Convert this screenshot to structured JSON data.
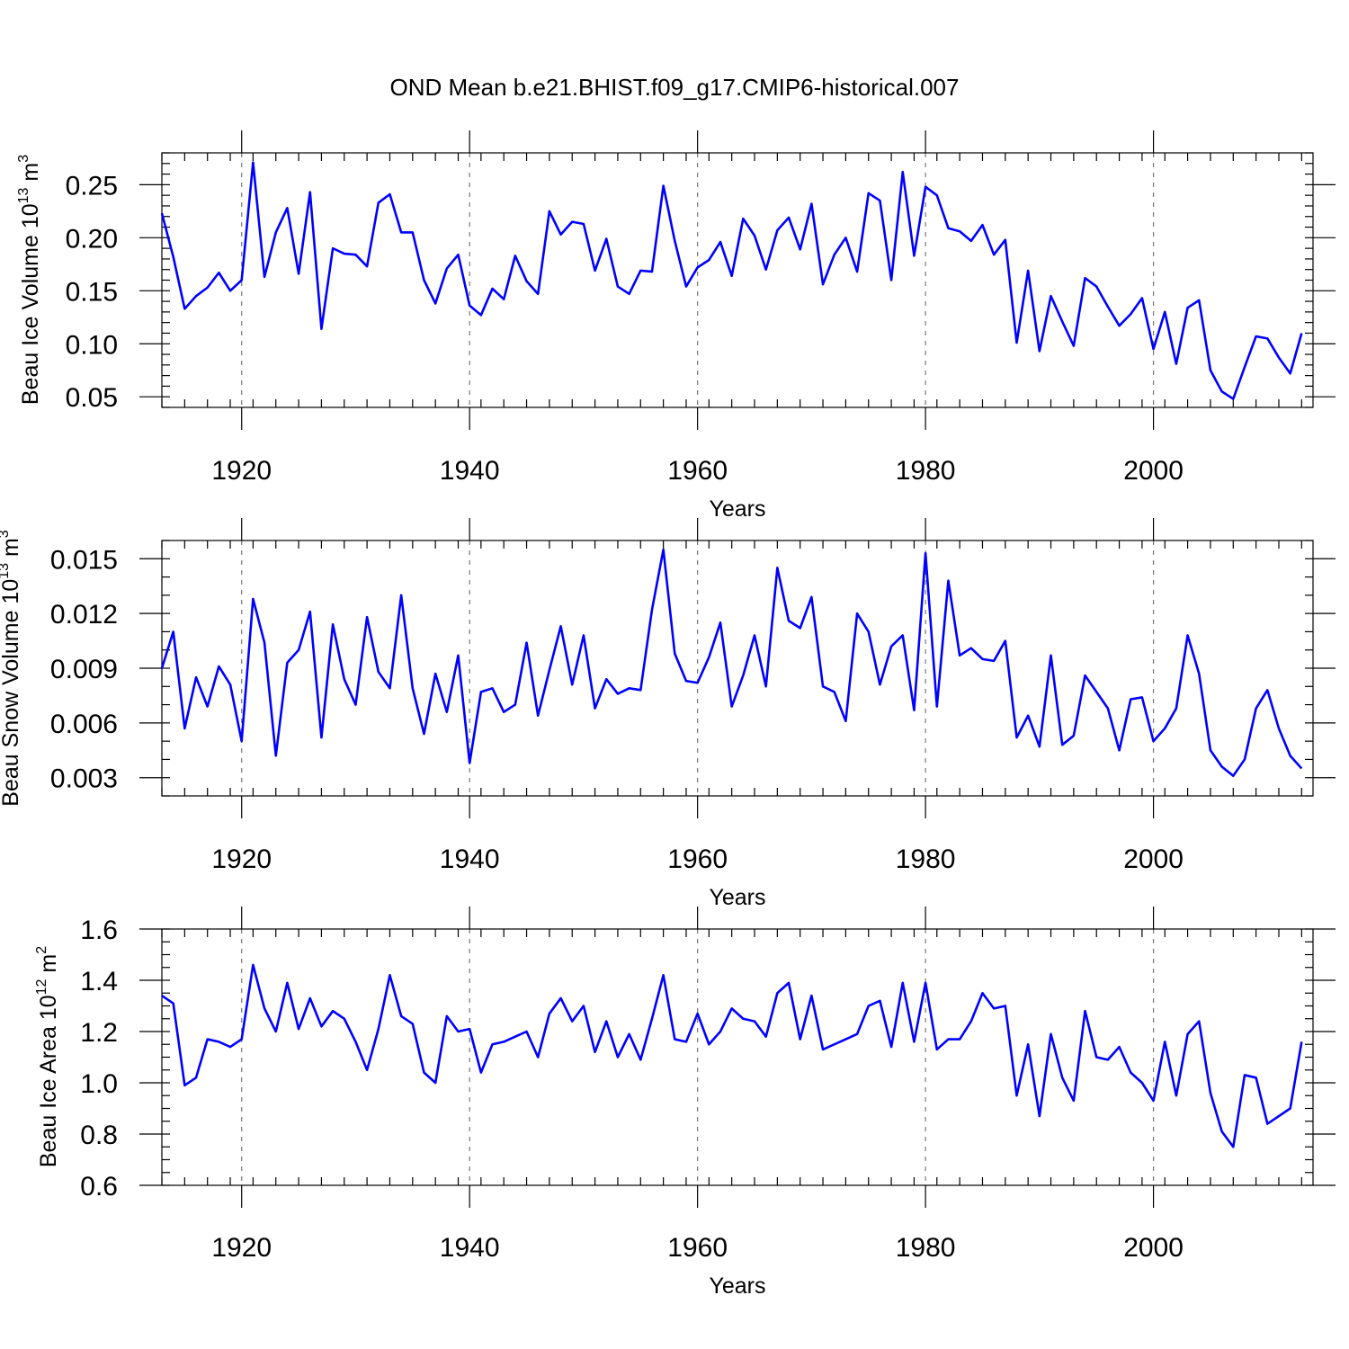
{
  "figure_title": "OND Mean b.e21.BHIST.f09_g17.CMIP6-historical.007",
  "series_color": "#0000ff",
  "chart_data": [
    {
      "type": "line",
      "title": "OND Mean b.e21.BHIST.f09_g17.CMIP6-historical.007",
      "ylabel_main": "Beau Ice Volume 10",
      "ylabel_exp": "13",
      "ylabel_unit": " m",
      "ylabel_unit_exp": "3",
      "xlabel": "Years",
      "xlim": [
        1913,
        2014
      ],
      "ylim": [
        0.04,
        0.28
      ],
      "major_yticks": [
        0.05,
        0.1,
        0.15,
        0.2,
        0.25
      ],
      "ytick_labels": [
        "0.05",
        "0.10",
        "0.15",
        "0.20",
        "0.25"
      ],
      "minor_ytick_step": 0.01,
      "xticks": [
        1920,
        1940,
        1960,
        1980,
        2000
      ],
      "xtick_labels": [
        "1920",
        "1940",
        "1960",
        "1980",
        "2000"
      ],
      "grid": "vertical dashed at major x ticks",
      "series": [
        {
          "name": "Beau Ice Volume",
          "x_start": 1913,
          "values": [
            0.223,
            0.182,
            0.133,
            0.145,
            0.153,
            0.167,
            0.15,
            0.16,
            0.271,
            0.163,
            0.205,
            0.228,
            0.166,
            0.243,
            0.114,
            0.19,
            0.185,
            0.184,
            0.173,
            0.233,
            0.241,
            0.205,
            0.205,
            0.16,
            0.138,
            0.171,
            0.184,
            0.136,
            0.127,
            0.152,
            0.142,
            0.183,
            0.159,
            0.147,
            0.225,
            0.203,
            0.215,
            0.213,
            0.169,
            0.199,
            0.154,
            0.147,
            0.169,
            0.168,
            0.249,
            0.197,
            0.154,
            0.172,
            0.179,
            0.196,
            0.164,
            0.218,
            0.202,
            0.17,
            0.207,
            0.219,
            0.189,
            0.232,
            0.156,
            0.184,
            0.2,
            0.168,
            0.242,
            0.235,
            0.16,
            0.262,
            0.183,
            0.248,
            0.24,
            0.209,
            0.206,
            0.197,
            0.212,
            0.184,
            0.198,
            0.101,
            0.169,
            0.093,
            0.145,
            0.121,
            0.098,
            0.162,
            0.154,
            0.135,
            0.117,
            0.128,
            0.143,
            0.095,
            0.13,
            0.081,
            0.134,
            0.141,
            0.075,
            0.055,
            0.048,
            0.078,
            0.107,
            0.105,
            0.087,
            0.072,
            0.11
          ]
        }
      ]
    },
    {
      "type": "line",
      "ylabel_main": "Beau Snow Volume 10",
      "ylabel_exp": "13",
      "ylabel_unit": " m",
      "ylabel_unit_exp": "3",
      "xlabel": "Years",
      "xlim": [
        1913,
        2014
      ],
      "ylim": [
        0.002,
        0.016
      ],
      "major_yticks": [
        0.003,
        0.006,
        0.009,
        0.012,
        0.015
      ],
      "ytick_labels": [
        "0.003",
        "0.006",
        "0.009",
        "0.012",
        "0.015"
      ],
      "minor_ytick_step": 0.001,
      "xticks": [
        1920,
        1940,
        1960,
        1980,
        2000
      ],
      "xtick_labels": [
        "1920",
        "1940",
        "1960",
        "1980",
        "2000"
      ],
      "grid": "vertical dashed at major x ticks",
      "series": [
        {
          "name": "Beau Snow Volume",
          "x_start": 1913,
          "values": [
            0.009,
            0.011,
            0.0057,
            0.0085,
            0.0069,
            0.0091,
            0.0081,
            0.005,
            0.0128,
            0.0104,
            0.0042,
            0.0093,
            0.01,
            0.0121,
            0.0052,
            0.0114,
            0.0084,
            0.007,
            0.0118,
            0.0088,
            0.0079,
            0.013,
            0.0079,
            0.0054,
            0.0087,
            0.0066,
            0.0097,
            0.0038,
            0.0077,
            0.0079,
            0.0066,
            0.007,
            0.0104,
            0.0064,
            0.0089,
            0.0113,
            0.0081,
            0.0108,
            0.0068,
            0.0084,
            0.0076,
            0.0079,
            0.0078,
            0.0122,
            0.0155,
            0.0098,
            0.0083,
            0.0082,
            0.0096,
            0.0115,
            0.0069,
            0.0086,
            0.0108,
            0.008,
            0.0145,
            0.0116,
            0.0112,
            0.0129,
            0.008,
            0.0077,
            0.0061,
            0.012,
            0.011,
            0.0081,
            0.0102,
            0.0108,
            0.0067,
            0.0153,
            0.0069,
            0.0138,
            0.0097,
            0.0101,
            0.0095,
            0.0094,
            0.0105,
            0.0052,
            0.0064,
            0.0047,
            0.0097,
            0.0048,
            0.0053,
            0.0086,
            0.0077,
            0.0068,
            0.0045,
            0.0073,
            0.0074,
            0.005,
            0.0057,
            0.0068,
            0.0108,
            0.0087,
            0.0045,
            0.0036,
            0.0031,
            0.004,
            0.0068,
            0.0078,
            0.0057,
            0.0042,
            0.0035
          ]
        }
      ]
    },
    {
      "type": "line",
      "ylabel_main": "Beau Ice Area 10",
      "ylabel_exp": "12",
      "ylabel_unit": " m",
      "ylabel_unit_exp": "2",
      "xlabel": "Years",
      "xlim": [
        1913,
        2014
      ],
      "ylim": [
        0.6,
        1.6
      ],
      "major_yticks": [
        0.6,
        0.8,
        1.0,
        1.2,
        1.4,
        1.6
      ],
      "ytick_labels": [
        "0.6",
        "0.8",
        "1.0",
        "1.2",
        "1.4",
        "1.6"
      ],
      "minor_ytick_step": 0.05,
      "xticks": [
        1920,
        1940,
        1960,
        1980,
        2000
      ],
      "xtick_labels": [
        "1920",
        "1940",
        "1960",
        "1980",
        "2000"
      ],
      "grid": "vertical dashed at major x ticks",
      "series": [
        {
          "name": "Beau Ice Area",
          "x_start": 1913,
          "values": [
            1.34,
            1.31,
            0.99,
            1.02,
            1.17,
            1.16,
            1.14,
            1.17,
            1.46,
            1.29,
            1.2,
            1.39,
            1.21,
            1.33,
            1.22,
            1.28,
            1.25,
            1.16,
            1.05,
            1.21,
            1.42,
            1.26,
            1.23,
            1.04,
            1.0,
            1.26,
            1.2,
            1.21,
            1.04,
            1.15,
            1.16,
            1.18,
            1.2,
            1.1,
            1.27,
            1.33,
            1.24,
            1.3,
            1.12,
            1.24,
            1.1,
            1.19,
            1.09,
            1.25,
            1.42,
            1.17,
            1.16,
            1.27,
            1.15,
            1.2,
            1.29,
            1.25,
            1.24,
            1.18,
            1.35,
            1.39,
            1.17,
            1.34,
            1.13,
            1.15,
            1.17,
            1.19,
            1.3,
            1.32,
            1.14,
            1.39,
            1.16,
            1.39,
            1.13,
            1.17,
            1.17,
            1.24,
            1.35,
            1.29,
            1.3,
            0.95,
            1.15,
            0.87,
            1.19,
            1.02,
            0.93,
            1.28,
            1.1,
            1.09,
            1.14,
            1.04,
            1.0,
            0.93,
            1.16,
            0.95,
            1.19,
            1.24,
            0.96,
            0.81,
            0.75,
            1.03,
            1.02,
            0.84,
            0.87,
            0.9,
            1.16
          ]
        }
      ]
    }
  ]
}
